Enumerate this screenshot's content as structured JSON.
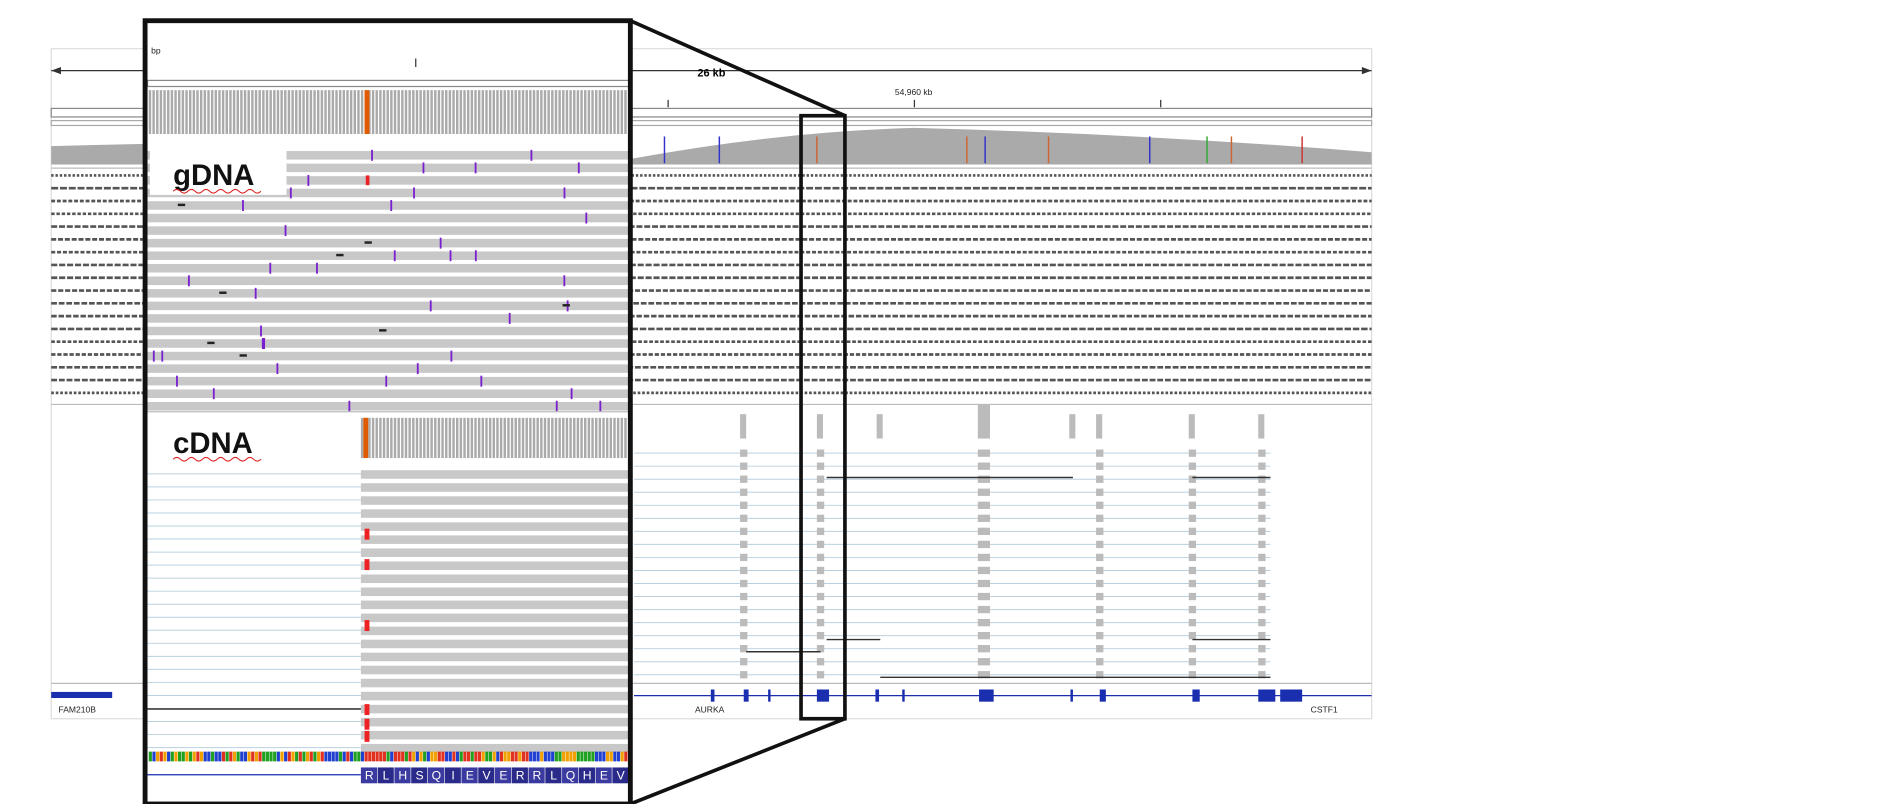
{
  "ruler": {
    "unit": "bp",
    "span": "26 kb",
    "position": "54,960 kb"
  },
  "panels": {
    "genomic": "gDNA",
    "complementary": "cDNA"
  },
  "genes": [
    "FAM210B",
    "AURKA",
    "CSTF1"
  ],
  "translation": [
    "R",
    "L",
    "H",
    "S",
    "Q",
    "I",
    "E",
    "V",
    "E",
    "R",
    "R",
    "L",
    "Q",
    "H",
    "E",
    "V"
  ]
}
